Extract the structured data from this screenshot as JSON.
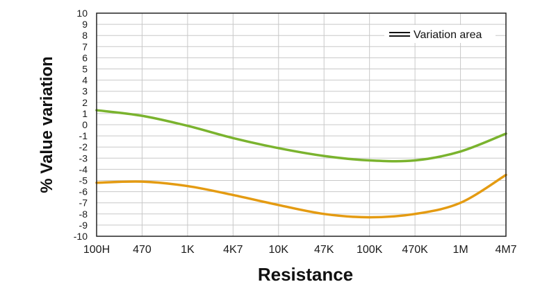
{
  "chart_data": {
    "type": "line",
    "title": "",
    "xlabel": "Resistance",
    "ylabel": "% Value variation",
    "categories": [
      "100H",
      "470",
      "1K",
      "4K7",
      "10K",
      "47K",
      "100K",
      "470K",
      "1M",
      "4M7"
    ],
    "ylim": [
      -10,
      10
    ],
    "yticks": [
      10,
      9,
      8,
      7,
      6,
      5,
      4,
      3,
      2,
      1,
      0,
      -1,
      -2,
      -3,
      -4,
      -5,
      -6,
      -7,
      -8,
      -9,
      -10
    ],
    "grid": true,
    "legend": {
      "label": "Variation area",
      "placement": "top-right"
    },
    "series": [
      {
        "color": "#7ab32e",
        "values": [
          1.3,
          0.8,
          -0.1,
          -1.2,
          -2.1,
          -2.8,
          -3.2,
          -3.2,
          -2.4,
          -0.8
        ]
      },
      {
        "color": "#e49b12",
        "values": [
          -5.2,
          -5.1,
          -5.5,
          -6.3,
          -7.2,
          -8.0,
          -8.3,
          -8.0,
          -7.0,
          -4.5
        ]
      }
    ]
  }
}
